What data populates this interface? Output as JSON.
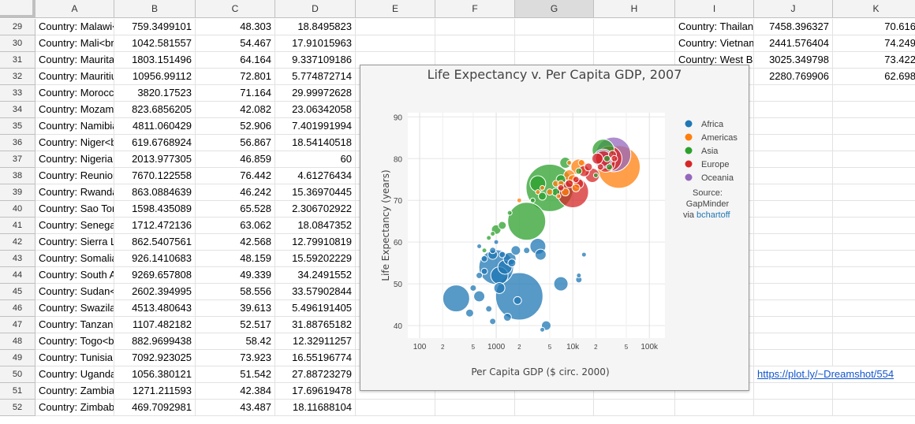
{
  "columns": [
    "A",
    "B",
    "C",
    "D",
    "E",
    "F",
    "G",
    "H",
    "I",
    "J",
    "K"
  ],
  "selected_column": "G",
  "rows": [
    {
      "n": "29",
      "a": "Country: Malawi<br",
      "b": "759.3499101",
      "c": "48.303",
      "d": "18.8495823",
      "i": "Country: Thailan",
      "j": "7458.396327",
      "k": "70.616"
    },
    {
      "n": "30",
      "a": "Country: Mali<br",
      "b": "1042.581557",
      "c": "54.467",
      "d": "17.91015963",
      "i": "Country: Vietnam",
      "j": "2441.576404",
      "k": "74.249"
    },
    {
      "n": "31",
      "a": "Country: Maurita",
      "b": "1803.151496",
      "c": "64.164",
      "d": "9.337109186",
      "i": "Country: West Ba",
      "j": "3025.349798",
      "k": "73.422"
    },
    {
      "n": "32",
      "a": "Country: Mauritiu",
      "b": "10956.99112",
      "c": "72.801",
      "d": "5.774872714",
      "i": "",
      "j": "2280.769906",
      "k": "62.698"
    },
    {
      "n": "33",
      "a": "Country: Morocc",
      "b": "3820.17523",
      "c": "71.164",
      "d": "29.99972628",
      "i": "",
      "j": "",
      "k": ""
    },
    {
      "n": "34",
      "a": "Country: Mozam",
      "b": "823.6856205",
      "c": "42.082",
      "d": "23.06342058",
      "i": "",
      "j": "",
      "k": ""
    },
    {
      "n": "35",
      "a": "Country: Namibia",
      "b": "4811.060429",
      "c": "52.906",
      "d": "7.401991994",
      "i": "",
      "j": "",
      "k": ""
    },
    {
      "n": "36",
      "a": "Country: Niger<b",
      "b": "619.6768924",
      "c": "56.867",
      "d": "18.54140518",
      "i": "",
      "j": "",
      "k": ""
    },
    {
      "n": "37",
      "a": "Country: Nigeria",
      "b": "2013.977305",
      "c": "46.859",
      "d": "60",
      "i": "",
      "j": "",
      "k": ""
    },
    {
      "n": "38",
      "a": "Country: Reunion",
      "b": "7670.122558",
      "c": "76.442",
      "d": "4.61276434",
      "i": "",
      "j": "",
      "k": ""
    },
    {
      "n": "39",
      "a": "Country: Rwanda",
      "b": "863.0884639",
      "c": "46.242",
      "d": "15.36970445",
      "i": "",
      "j": "",
      "k": ""
    },
    {
      "n": "40",
      "a": "Country: Sao Tor",
      "b": "1598.435089",
      "c": "65.528",
      "d": "2.306702922",
      "i": "",
      "j": "",
      "k": ""
    },
    {
      "n": "41",
      "a": "Country: Senega",
      "b": "1712.472136",
      "c": "63.062",
      "d": "18.0847352",
      "i": "",
      "j": "",
      "k": ""
    },
    {
      "n": "42",
      "a": "Country: Sierra L",
      "b": "862.5407561",
      "c": "42.568",
      "d": "12.79910819",
      "i": "",
      "j": "",
      "k": ""
    },
    {
      "n": "43",
      "a": "Country: Somalia",
      "b": "926.1410683",
      "c": "48.159",
      "d": "15.59202229",
      "i": "",
      "j": "",
      "k": ""
    },
    {
      "n": "44",
      "a": "Country: South A",
      "b": "9269.657808",
      "c": "49.339",
      "d": "34.2491552",
      "i": "",
      "j": "",
      "k": ""
    },
    {
      "n": "45",
      "a": "Country: Sudan<",
      "b": "2602.394995",
      "c": "58.556",
      "d": "33.57902844",
      "i": "",
      "j": "",
      "k": ""
    },
    {
      "n": "46",
      "a": "Country: Swazila",
      "b": "4513.480643",
      "c": "39.613",
      "d": "5.496191405",
      "i": "",
      "j": "",
      "k": ""
    },
    {
      "n": "47",
      "a": "Country: Tanzani",
      "b": "1107.482182",
      "c": "52.517",
      "d": "31.88765182",
      "i": "",
      "j": "",
      "k": ""
    },
    {
      "n": "48",
      "a": "Country: Togo<b",
      "b": "882.9699438",
      "c": "58.42",
      "d": "12.32911257",
      "i": "",
      "j": "",
      "k": ""
    },
    {
      "n": "49",
      "a": "Country: Tunisia",
      "b": "7092.923025",
      "c": "73.923",
      "d": "16.55196774",
      "i": "",
      "j": "",
      "k": ""
    },
    {
      "n": "50",
      "a": "Country: Uganda",
      "b": "1056.380121",
      "c": "51.542",
      "d": "27.88723279",
      "i": "",
      "j": "",
      "k": ""
    },
    {
      "n": "51",
      "a": "Country: Zambia",
      "b": "1271.211593",
      "c": "42.384",
      "d": "17.69619478",
      "i": "",
      "j": "",
      "k": ""
    },
    {
      "n": "52",
      "a": "Country: Zimbab",
      "b": "469.7092981",
      "c": "43.487",
      "d": "18.11688104",
      "i": "",
      "j": "",
      "k": ""
    }
  ],
  "link_cell": {
    "row": "50",
    "column": "J",
    "text": "https://plot.ly/~Dreamshot/554"
  },
  "chart_data": {
    "type": "scatter",
    "title": "Life Expectancy v. Per Capita GDP, 2007",
    "xlabel": "Per Capita GDP ($ circ. 2000)",
    "ylabel": "Life Expectancy (years)",
    "x_scale": "log",
    "xlim": [
      70,
      160000
    ],
    "ylim": [
      37,
      91
    ],
    "x_ticks": [
      {
        "value": 100,
        "label": "100",
        "major": true
      },
      {
        "value": 200,
        "label": "2",
        "major": false
      },
      {
        "value": 500,
        "label": "5",
        "major": false
      },
      {
        "value": 1000,
        "label": "1000",
        "major": true
      },
      {
        "value": 2000,
        "label": "2",
        "major": false
      },
      {
        "value": 5000,
        "label": "5",
        "major": false
      },
      {
        "value": 10000,
        "label": "10k",
        "major": true
      },
      {
        "value": 20000,
        "label": "2",
        "major": false
      },
      {
        "value": 50000,
        "label": "5",
        "major": false
      },
      {
        "value": 100000,
        "label": "100k",
        "major": true
      }
    ],
    "y_ticks": [
      40,
      50,
      60,
      70,
      80,
      90
    ],
    "grid": true,
    "legend_position": "right",
    "source_label": "Source:",
    "source_name": "GapMinder",
    "via_prefix": "via",
    "via_link": "bchartoff",
    "colors": {
      "Africa": "#1f77b4",
      "Americas": "#ff7f0e",
      "Asia": "#2ca02c",
      "Europe": "#d62728",
      "Oceania": "#9467bd"
    },
    "series": [
      {
        "name": "Africa",
        "points": [
          [
            1000,
            54,
            22
          ],
          [
            1100,
            52,
            11
          ],
          [
            1300,
            54,
            9
          ],
          [
            1500,
            56,
            8
          ],
          [
            1100,
            49,
            7
          ],
          [
            900,
            57,
            6
          ],
          [
            1800,
            58,
            6
          ],
          [
            600,
            47,
            7
          ],
          [
            2000,
            47,
            30
          ],
          [
            300,
            46.5,
            17
          ],
          [
            7000,
            50,
            9
          ],
          [
            3500,
            59,
            10
          ],
          [
            3800,
            57,
            7
          ],
          [
            4500,
            40,
            6
          ],
          [
            12000,
            51,
            4
          ],
          [
            450,
            43,
            5
          ],
          [
            800,
            44,
            4
          ],
          [
            600,
            52,
            4
          ],
          [
            900,
            58,
            4
          ],
          [
            1200,
            57,
            4
          ],
          [
            1600,
            55,
            5
          ],
          [
            700,
            56,
            4
          ],
          [
            500,
            49,
            4
          ],
          [
            1900,
            46,
            5
          ],
          [
            1400,
            42,
            5
          ],
          [
            2500,
            58,
            4
          ],
          [
            14000,
            57,
            3
          ],
          [
            900,
            41,
            4
          ],
          [
            4000,
            39,
            3
          ],
          [
            12000,
            52,
            3
          ],
          [
            700,
            53,
            4
          ],
          [
            1000,
            60,
            3
          ],
          [
            600,
            59,
            3
          ]
        ]
      },
      {
        "name": "Americas",
        "points": [
          [
            40000,
            78,
            27
          ],
          [
            10000,
            75,
            6
          ],
          [
            12000,
            78,
            10
          ],
          [
            8000,
            72,
            5
          ],
          [
            9000,
            76,
            7
          ],
          [
            6000,
            74,
            4
          ],
          [
            11000,
            73,
            5
          ],
          [
            5000,
            72,
            4
          ],
          [
            7000,
            74,
            4
          ],
          [
            13000,
            79,
            4
          ],
          [
            3500,
            72,
            3
          ],
          [
            9000,
            79,
            3
          ],
          [
            4000,
            73,
            3
          ],
          [
            6500,
            71,
            3
          ],
          [
            2000,
            70,
            3
          ]
        ]
      },
      {
        "name": "Asia",
        "points": [
          [
            5000,
            73,
            30
          ],
          [
            2500,
            65,
            24
          ],
          [
            25000,
            82,
            14
          ],
          [
            3500,
            74,
            10
          ],
          [
            7000,
            75,
            6
          ],
          [
            8000,
            79,
            7
          ],
          [
            1000,
            63,
            6
          ],
          [
            6000,
            72,
            5
          ],
          [
            4000,
            71,
            5
          ],
          [
            28000,
            80,
            4
          ],
          [
            1200,
            64,
            5
          ],
          [
            12000,
            77,
            4
          ],
          [
            900,
            62,
            3
          ],
          [
            30000,
            78,
            4
          ],
          [
            1500,
            67,
            3
          ],
          [
            800,
            61,
            3
          ],
          [
            3000,
            70,
            3
          ],
          [
            700,
            58,
            3
          ],
          [
            20000,
            76,
            3
          ]
        ]
      },
      {
        "name": "Europe",
        "points": [
          [
            10000,
            72,
            20
          ],
          [
            30000,
            80,
            16
          ],
          [
            27000,
            79,
            12
          ],
          [
            25000,
            80,
            10
          ],
          [
            18000,
            76,
            9
          ],
          [
            21000,
            80,
            7
          ],
          [
            14000,
            77,
            7
          ],
          [
            12000,
            74,
            6
          ],
          [
            9000,
            74,
            5
          ],
          [
            16000,
            78,
            5
          ],
          [
            33000,
            81,
            5
          ],
          [
            7000,
            73,
            4
          ],
          [
            23000,
            78,
            4
          ],
          [
            11000,
            75,
            4
          ],
          [
            35000,
            80,
            4
          ]
        ]
      },
      {
        "name": "Oceania",
        "points": [
          [
            34000,
            81,
            22
          ],
          [
            25000,
            80,
            12
          ]
        ]
      }
    ]
  }
}
